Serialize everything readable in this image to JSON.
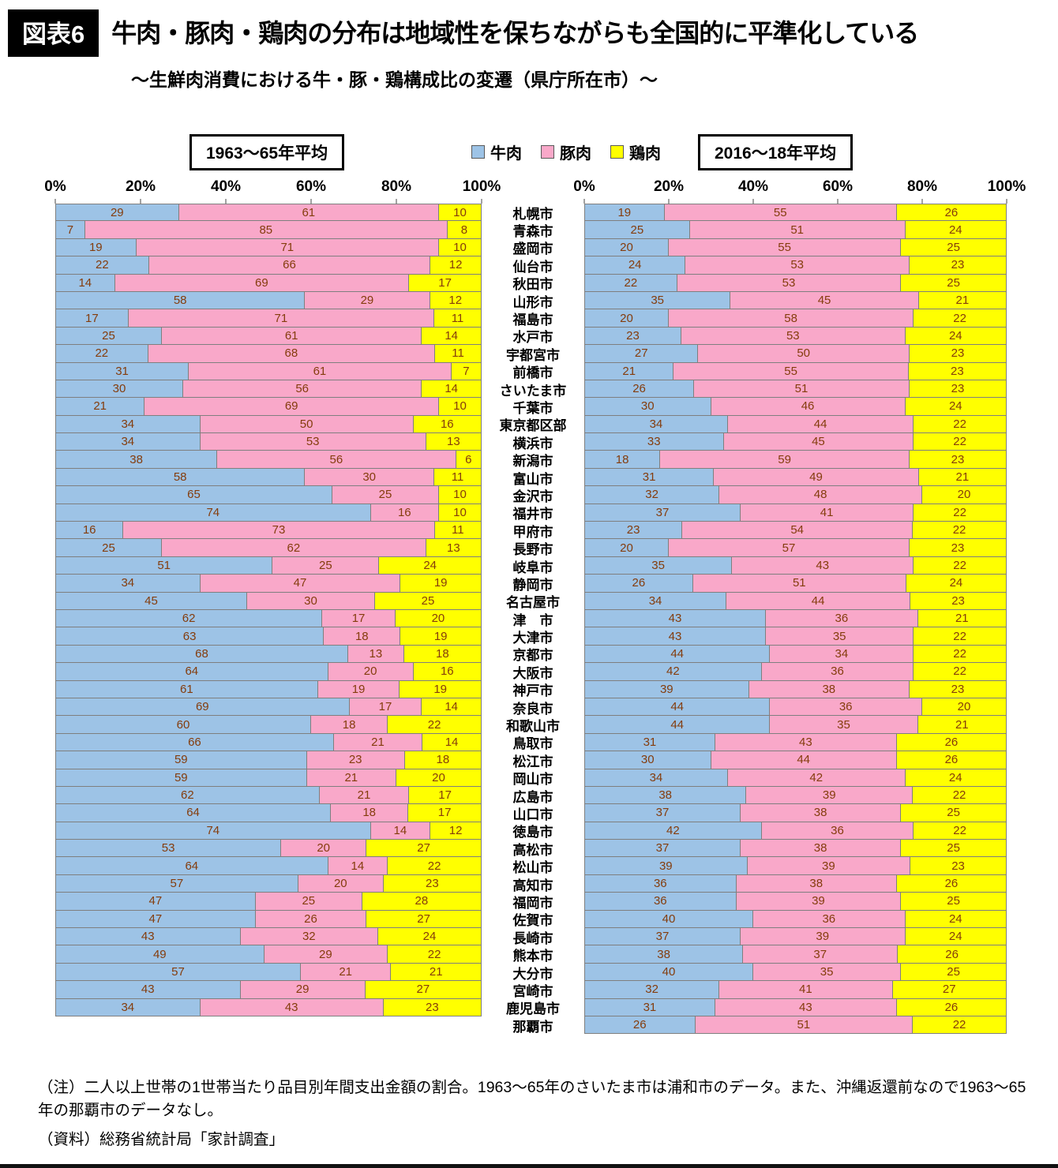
{
  "header": {
    "badge": "図表6",
    "title": "牛肉・豚肉・鶏肉の分布は地域性を保ちながらも全国的に平準化している",
    "subtitle": "～生鮮肉消費における牛・豚・鶏構成比の変遷（県庁所在市）～"
  },
  "legend": [
    {
      "label": "牛肉",
      "color": "#9DC3E6"
    },
    {
      "label": "豚肉",
      "color": "#F9A8C9"
    },
    {
      "label": "鶏肉",
      "color": "#FFFF00"
    }
  ],
  "panel_labels": {
    "left": "1963～65年平均",
    "right": "2016～18年平均"
  },
  "notes": {
    "note": "（注）二人以上世帯の1世帯当たり品目別年間支出金額の割合。1963～65年のさいたま市は浦和市のデータ。また、沖縄返還前なので1963～65年の那覇市のデータなし。",
    "source": "（資料）総務省統計局「家計調査」"
  },
  "chart_data": {
    "type": "bar",
    "subtype": "horizontal_stacked_100pct",
    "series_names": [
      "牛肉",
      "豚肉",
      "鶏肉"
    ],
    "series_colors": [
      "#9DC3E6",
      "#F9A8C9",
      "#FFFF00"
    ],
    "value_label_color": "#843C0C",
    "axis_ticks": [
      "0%",
      "20%",
      "40%",
      "60%",
      "80%",
      "100%"
    ],
    "xlim": [
      0,
      100
    ],
    "grid": false,
    "legend_position": "top-center",
    "cities": [
      "札幌市",
      "青森市",
      "盛岡市",
      "仙台市",
      "秋田市",
      "山形市",
      "福島市",
      "水戸市",
      "宇都宮市",
      "前橋市",
      "さいたま市",
      "千葉市",
      "東京都区部",
      "横浜市",
      "新潟市",
      "富山市",
      "金沢市",
      "福井市",
      "甲府市",
      "長野市",
      "岐阜市",
      "静岡市",
      "名古屋市",
      "津　市",
      "大津市",
      "京都市",
      "大阪市",
      "神戸市",
      "奈良市",
      "和歌山市",
      "鳥取市",
      "松江市",
      "岡山市",
      "広島市",
      "山口市",
      "徳島市",
      "高松市",
      "松山市",
      "高知市",
      "福岡市",
      "佐賀市",
      "長崎市",
      "熊本市",
      "大分市",
      "宮崎市",
      "鹿児島市",
      "那覇市"
    ],
    "period_1963_65": [
      [
        29,
        61,
        10
      ],
      [
        7,
        85,
        8
      ],
      [
        19,
        71,
        10
      ],
      [
        22,
        66,
        12
      ],
      [
        14,
        69,
        17
      ],
      [
        58,
        29,
        12
      ],
      [
        17,
        71,
        11
      ],
      [
        25,
        61,
        14
      ],
      [
        22,
        68,
        11
      ],
      [
        31,
        61,
        7
      ],
      [
        30,
        56,
        14
      ],
      [
        21,
        69,
        10
      ],
      [
        34,
        50,
        16
      ],
      [
        34,
        53,
        13
      ],
      [
        38,
        56,
        6
      ],
      [
        58,
        30,
        11
      ],
      [
        65,
        25,
        10
      ],
      [
        74,
        16,
        10
      ],
      [
        16,
        73,
        11
      ],
      [
        25,
        62,
        13
      ],
      [
        51,
        25,
        24
      ],
      [
        34,
        47,
        19
      ],
      [
        45,
        30,
        25
      ],
      [
        62,
        17,
        20
      ],
      [
        63,
        18,
        19
      ],
      [
        68,
        13,
        18
      ],
      [
        64,
        20,
        16
      ],
      [
        61,
        19,
        19
      ],
      [
        69,
        17,
        14
      ],
      [
        60,
        18,
        22
      ],
      [
        66,
        21,
        14
      ],
      [
        59,
        23,
        18
      ],
      [
        59,
        21,
        20
      ],
      [
        62,
        21,
        17
      ],
      [
        64,
        18,
        17
      ],
      [
        74,
        14,
        12
      ],
      [
        53,
        20,
        27
      ],
      [
        64,
        14,
        22
      ],
      [
        57,
        20,
        23
      ],
      [
        47,
        25,
        28
      ],
      [
        47,
        26,
        27
      ],
      [
        43,
        32,
        24
      ],
      [
        49,
        29,
        22
      ],
      [
        57,
        21,
        21
      ],
      [
        43,
        29,
        27
      ],
      [
        34,
        43,
        23
      ],
      null
    ],
    "period_2016_18": [
      [
        19,
        55,
        26
      ],
      [
        25,
        51,
        24
      ],
      [
        20,
        55,
        25
      ],
      [
        24,
        53,
        23
      ],
      [
        22,
        53,
        25
      ],
      [
        35,
        45,
        21
      ],
      [
        20,
        58,
        22
      ],
      [
        23,
        53,
        24
      ],
      [
        27,
        50,
        23
      ],
      [
        21,
        55,
        23
      ],
      [
        26,
        51,
        23
      ],
      [
        30,
        46,
        24
      ],
      [
        34,
        44,
        22
      ],
      [
        33,
        45,
        22
      ],
      [
        18,
        59,
        23
      ],
      [
        31,
        49,
        21
      ],
      [
        32,
        48,
        20
      ],
      [
        37,
        41,
        22
      ],
      [
        23,
        54,
        22
      ],
      [
        20,
        57,
        23
      ],
      [
        35,
        43,
        22
      ],
      [
        26,
        51,
        24
      ],
      [
        34,
        44,
        23
      ],
      [
        43,
        36,
        21
      ],
      [
        43,
        35,
        22
      ],
      [
        44,
        34,
        22
      ],
      [
        42,
        36,
        22
      ],
      [
        39,
        38,
        23
      ],
      [
        44,
        36,
        20
      ],
      [
        44,
        35,
        21
      ],
      [
        31,
        43,
        26
      ],
      [
        30,
        44,
        26
      ],
      [
        34,
        42,
        24
      ],
      [
        38,
        39,
        22
      ],
      [
        37,
        38,
        25
      ],
      [
        42,
        36,
        22
      ],
      [
        37,
        38,
        25
      ],
      [
        39,
        39,
        23
      ],
      [
        36,
        38,
        26
      ],
      [
        36,
        39,
        25
      ],
      [
        40,
        36,
        24
      ],
      [
        37,
        39,
        24
      ],
      [
        38,
        37,
        26
      ],
      [
        40,
        35,
        25
      ],
      [
        32,
        41,
        27
      ],
      [
        31,
        43,
        26
      ],
      [
        26,
        51,
        22
      ]
    ]
  }
}
